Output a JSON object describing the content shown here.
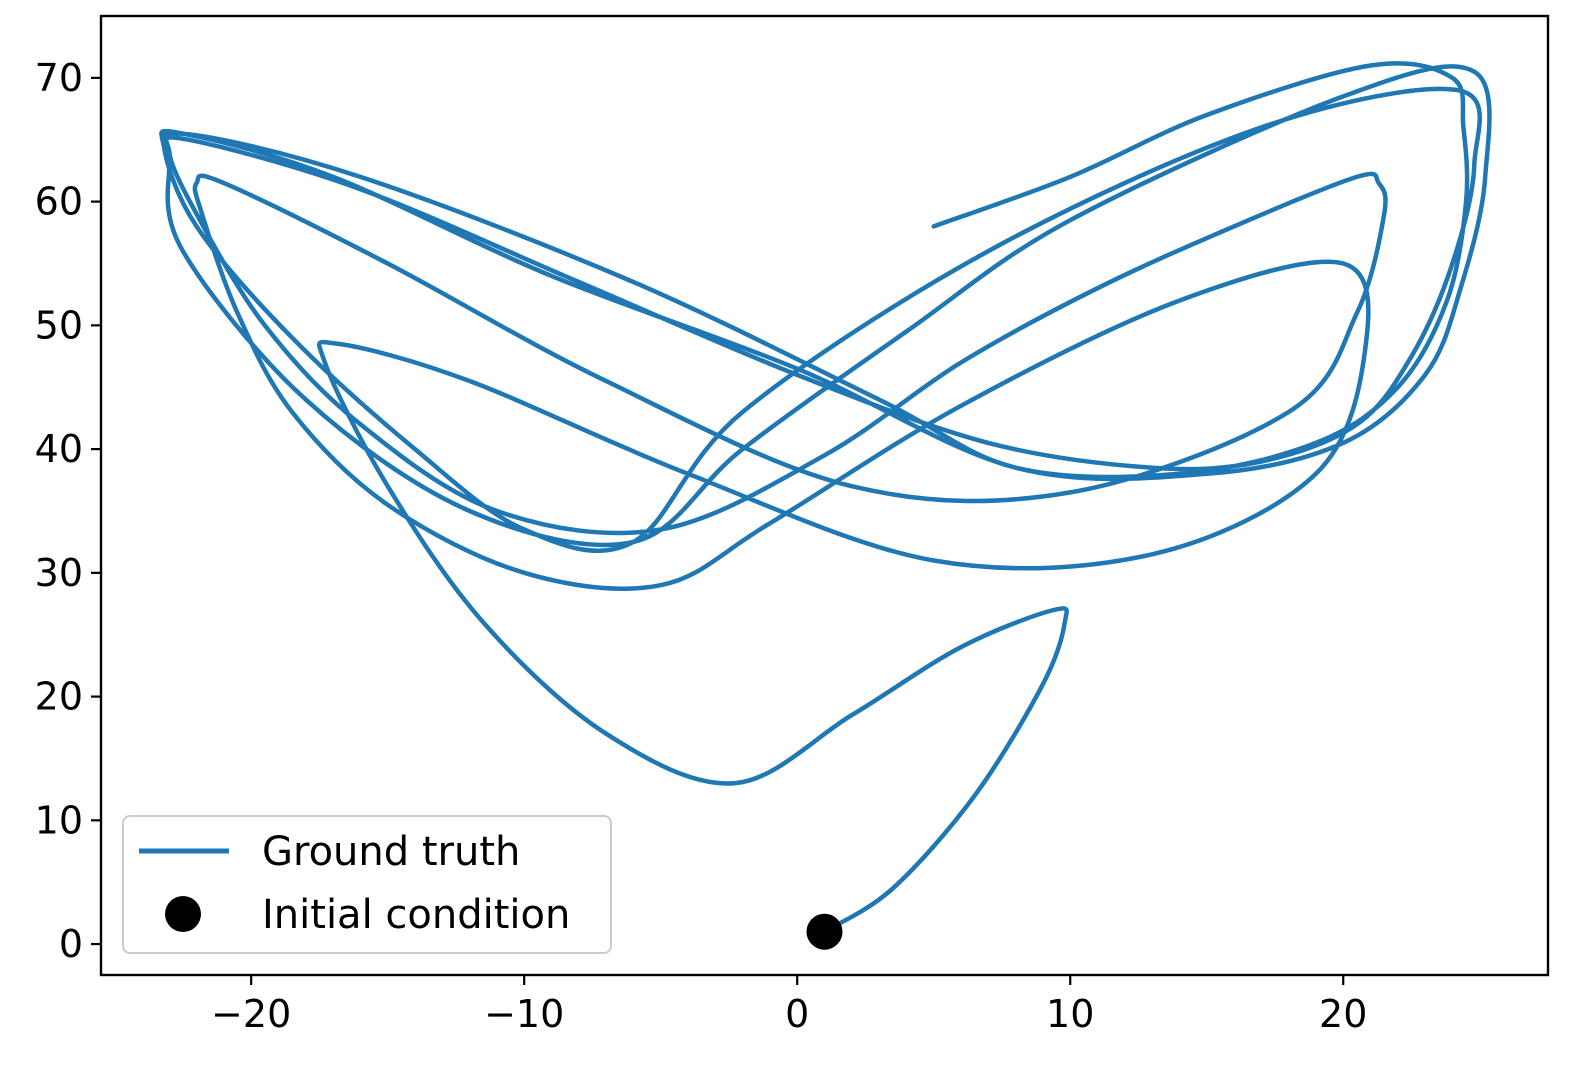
{
  "chart_data": {
    "type": "line",
    "title": "",
    "xlabel": "",
    "ylabel": "",
    "xlim": [
      -25.5,
      27.5
    ],
    "ylim": [
      -2.5,
      75
    ],
    "xticks": [
      -20,
      -10,
      0,
      10,
      20
    ],
    "yticks": [
      0,
      10,
      20,
      30,
      40,
      50,
      60,
      70
    ],
    "xtick_labels": [
      "−20",
      "−10",
      "0",
      "10",
      "20"
    ],
    "ytick_labels": [
      "0",
      "10",
      "20",
      "30",
      "40",
      "50",
      "60",
      "70"
    ],
    "grid": false,
    "legend_position": "lower-left",
    "series": [
      {
        "name": "Ground truth",
        "kind": "line",
        "color": "#1f77b4",
        "x": [
          1.0,
          3.5,
          6.5,
          9.0,
          9.8,
          9.4,
          6.0,
          2.0,
          -2.3,
          -7.0,
          -11.5,
          -15.0,
          -17.3,
          -16.8,
          -12.0,
          -4.0,
          5.0,
          13.0,
          19.0,
          20.8,
          20.0,
          14.0,
          6.0,
          -1.0,
          -5.0,
          -10.0,
          -15.0,
          -18.5,
          -20.5,
          -21.8,
          -22.0,
          -21.0,
          -15.0,
          -7.0,
          2.0,
          10.0,
          18.0,
          20.5,
          21.5,
          21.3,
          20.5,
          16.0,
          11.0,
          6.0,
          1.0,
          -5.0,
          -11.0,
          -16.0,
          -19.5,
          -22.0,
          -23.0,
          -22.3,
          -16.0,
          -8.0,
          0.0,
          7.0,
          13.0,
          17.0,
          20.5,
          22.5,
          24.0,
          24.8,
          24.2,
          17.0,
          7.0,
          -2.0,
          -6.0,
          -10.0,
          -14.0,
          -18.5,
          -22.0,
          -23.2,
          -22.5,
          -17.0,
          -9.0,
          0.0,
          8.0,
          15.0,
          20.0,
          23.0,
          24.3,
          25.2,
          24.8,
          20.0,
          10.0,
          4.0,
          -2.0,
          -6.0,
          -12.0,
          -18.0,
          -22.5,
          -23.0,
          -22.6,
          -16.0,
          -6.0,
          3.0,
          8.0,
          14.0,
          19.0,
          22.0,
          23.8,
          24.5,
          24.4,
          24.0,
          21.0,
          15.0,
          10.0,
          5.0
        ],
        "y": [
          1.0,
          4.5,
          12.0,
          21.0,
          26.0,
          27.0,
          24.0,
          18.5,
          13.0,
          17.0,
          26.0,
          37.0,
          47.0,
          48.5,
          45.5,
          38.0,
          31.0,
          31.5,
          38.0,
          48.0,
          55.0,
          52.0,
          43.5,
          34.0,
          29.0,
          30.0,
          35.5,
          43.0,
          51.0,
          59.0,
          61.5,
          61.5,
          55.0,
          45.5,
          37.0,
          36.5,
          43.0,
          51.0,
          59.0,
          61.5,
          62.0,
          58.0,
          53.0,
          47.0,
          39.5,
          33.5,
          35.0,
          42.0,
          50.0,
          59.0,
          64.0,
          65.0,
          61.0,
          53.5,
          46.0,
          40.5,
          38.5,
          39.0,
          42.0,
          47.5,
          55.0,
          63.0,
          69.0,
          66.0,
          56.0,
          43.0,
          32.5,
          33.5,
          40.0,
          49.0,
          58.0,
          64.5,
          65.5,
          62.0,
          54.0,
          46.5,
          38.5,
          38.0,
          40.5,
          46.0,
          53.0,
          62.0,
          70.5,
          68.5,
          58.5,
          49.5,
          40.0,
          32.5,
          35.0,
          44.0,
          56.0,
          63.0,
          65.5,
          62.0,
          53.5,
          44.0,
          38.5,
          38.0,
          40.5,
          45.0,
          52.0,
          60.0,
          66.0,
          70.0,
          71.0,
          67.0,
          62.0,
          58.0
        ]
      },
      {
        "name": "Initial condition",
        "kind": "marker",
        "color": "#000000",
        "x": [
          1.0
        ],
        "y": [
          1.0
        ]
      }
    ]
  }
}
